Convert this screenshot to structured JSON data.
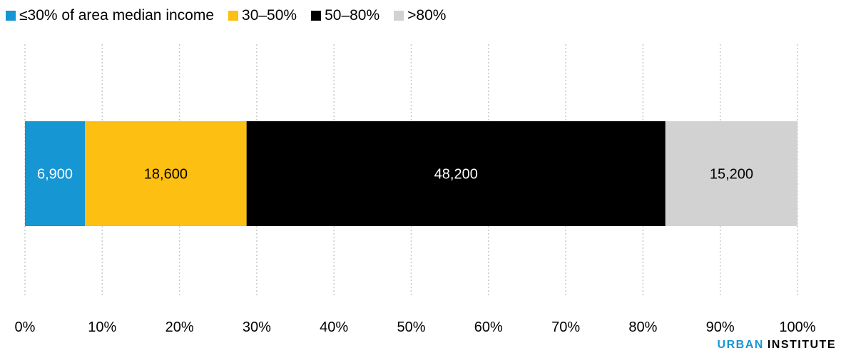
{
  "legend": [
    {
      "label": "≤30% of area median income",
      "color": "#1696d2"
    },
    {
      "label": "30–50%",
      "color": "#fdbf11"
    },
    {
      "label": "50–80%",
      "color": "#000000"
    },
    {
      "label": ">80%",
      "color": "#d2d2d2"
    }
  ],
  "brand": {
    "urban": "URBAN",
    "institute": "INSTITUTE"
  },
  "chart_data": {
    "type": "bar",
    "orientation": "horizontal",
    "stacked": "percent",
    "xlim": [
      0,
      100
    ],
    "x_ticks": [
      "0%",
      "10%",
      "20%",
      "30%",
      "40%",
      "50%",
      "60%",
      "70%",
      "80%",
      "90%",
      "100%"
    ],
    "grid": true,
    "legend_position": "top-left",
    "series": [
      {
        "name": "≤30% of area median income",
        "value": 6900,
        "label": "6,900",
        "color": "#1696d2",
        "label_color": "#ffffff"
      },
      {
        "name": "30–50%",
        "value": 18600,
        "label": "18,600",
        "color": "#fdbf11",
        "label_color": "#000000"
      },
      {
        "name": "50–80%",
        "value": 48200,
        "label": "48,200",
        "color": "#000000",
        "label_color": "#ffffff"
      },
      {
        "name": ">80%",
        "value": 15200,
        "label": "15,200",
        "color": "#d2d2d2",
        "label_color": "#000000"
      }
    ]
  }
}
